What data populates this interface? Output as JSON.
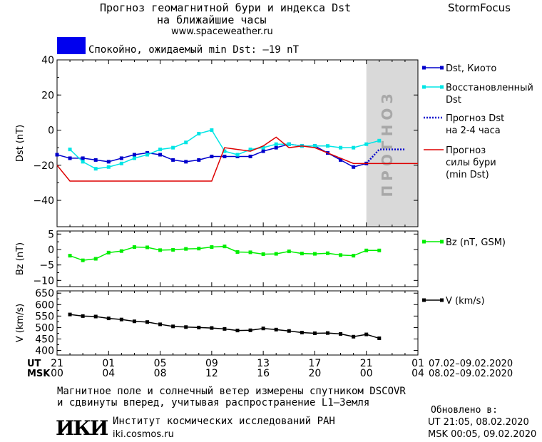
{
  "header": {
    "title_line1": "Прогноз геомагнитной бури и индекса Dst",
    "title_line2": "на ближайшие часы",
    "url": "www.spaceweather.ru",
    "brand": "StormFocus"
  },
  "status": {
    "text": "Спокойно, ожидаемый min Dst: –19 nT",
    "color": "#0000ee"
  },
  "colors": {
    "dst_kyoto": "#0000cc",
    "dst_restored": "#00e5e5",
    "dst_forecast": "#0000cc",
    "storm_forecast": "#dd0000",
    "bz": "#00ee00",
    "v": "#000000",
    "forecast_band": "#d9d9d9"
  },
  "forecast_band_label": "ПРОГНОЗ",
  "time_axis": {
    "row_ut_label": "UT",
    "row_msk_label": "MSK",
    "ut_ticks": [
      "21",
      "01",
      "05",
      "09",
      "13",
      "17",
      "21",
      "01"
    ],
    "msk_ticks": [
      "00",
      "04",
      "08",
      "12",
      "16",
      "20",
      "00",
      "04"
    ],
    "ut_dates": "07.02–09.02.2020",
    "msk_dates": "08.02–09.02.2020"
  },
  "chart_data": [
    {
      "type": "line",
      "ylabel": "Dst (nT)",
      "ylim": [
        -55,
        40
      ],
      "yticks": [
        40,
        20,
        0,
        -20,
        -40
      ],
      "xlim": [
        0,
        28
      ],
      "forecast_band": [
        24,
        28
      ],
      "legend": [
        "Dst, Киото",
        "Восстановленный Dst",
        "Прогноз Dst на 2-4 часа",
        "Прогноз силы бури (min Dst)"
      ],
      "series": [
        {
          "name": "Dst, Киото",
          "x": [
            0,
            1,
            2,
            3,
            4,
            5,
            6,
            7,
            8,
            9,
            10,
            11,
            12,
            13,
            14,
            15,
            16,
            17,
            18,
            19,
            20,
            21,
            22,
            23,
            24
          ],
          "values": [
            -14,
            -16,
            -16,
            -17,
            -18,
            -16,
            -14,
            -13,
            -14,
            -17,
            -18,
            -17,
            -15,
            -15,
            -15,
            -15,
            -12,
            -10,
            -8,
            -9,
            -9,
            -13,
            -17,
            -21,
            -19
          ]
        },
        {
          "name": "Восстановленный Dst",
          "x": [
            1,
            2,
            3,
            4,
            5,
            6,
            7,
            8,
            9,
            10,
            11,
            12,
            13,
            14,
            15,
            16,
            17,
            18,
            19,
            20,
            21,
            22,
            23,
            24,
            25
          ],
          "values": [
            -11,
            -18,
            -22,
            -21,
            -19,
            -16,
            -14,
            -11,
            -10,
            -7,
            -2,
            0,
            -12,
            -14,
            -11,
            -10,
            -8,
            -8,
            -9,
            -9,
            -9,
            -10,
            -10,
            -8,
            -6
          ]
        },
        {
          "name": "Прогноз Dst на 2-4 часа",
          "x": [
            24,
            25,
            26,
            27
          ],
          "values": [
            -19,
            -11,
            -11,
            -11
          ]
        },
        {
          "name": "Прогноз силы бури (min Dst)",
          "x": [
            0,
            1,
            12,
            13,
            14,
            15,
            16,
            17,
            18,
            19,
            20,
            21,
            22,
            23,
            24,
            28
          ],
          "values": [
            -20,
            -29,
            -29,
            -10,
            -11,
            -12,
            -9,
            -4,
            -10,
            -9,
            -10,
            -13,
            -16,
            -19,
            -19,
            -19
          ]
        }
      ]
    },
    {
      "type": "line",
      "ylabel": "Bz (nT)",
      "ylim": [
        -12,
        6
      ],
      "yticks": [
        5,
        0,
        -5,
        -10
      ],
      "xlim": [
        0,
        28
      ],
      "legend": [
        "Bz (nT, GSM)"
      ],
      "series": [
        {
          "name": "Bz (nT, GSM)",
          "x": [
            1,
            2,
            3,
            4,
            5,
            6,
            7,
            8,
            9,
            10,
            11,
            12,
            13,
            14,
            15,
            16,
            17,
            18,
            19,
            20,
            21,
            22,
            23,
            24,
            25
          ],
          "values": [
            -2,
            -3.5,
            -3,
            -1,
            -0.5,
            0.8,
            0.7,
            -0.2,
            -0.1,
            0.2,
            0.3,
            0.8,
            1,
            -0.8,
            -0.9,
            -1.5,
            -1.4,
            -0.6,
            -1.3,
            -1.4,
            -1.2,
            -1.8,
            -2,
            -0.3,
            -0.3
          ]
        }
      ]
    },
    {
      "type": "line",
      "ylabel": "V (km/s)",
      "ylim": [
        380,
        660
      ],
      "yticks": [
        650,
        600,
        550,
        500,
        450,
        400
      ],
      "xlim": [
        0,
        28
      ],
      "legend": [
        "V (km/s)"
      ],
      "series": [
        {
          "name": "V (km/s)",
          "x": [
            1,
            2,
            3,
            4,
            5,
            6,
            7,
            8,
            9,
            10,
            11,
            12,
            13,
            14,
            15,
            16,
            17,
            18,
            19,
            20,
            21,
            22,
            23,
            24,
            25
          ],
          "values": [
            557,
            550,
            548,
            540,
            535,
            527,
            524,
            514,
            505,
            502,
            500,
            498,
            494,
            487,
            488,
            496,
            491,
            485,
            478,
            475,
            476,
            472,
            460,
            470,
            453
          ]
        }
      ]
    }
  ],
  "footer": {
    "line1": "Магнитное поле и солнечный ветер измерены спутником DSCOVR",
    "line2": "и сдвинуты вперед, учитывая распространение L1–Земля",
    "logo_text": "ИКИ",
    "institute": "Институт космических исследований РАН",
    "institute_url": "iki.cosmos.ru",
    "updated_label": "Обновлено в:",
    "updated_ut": "UT   21:05, 08.02.2020",
    "updated_msk": "MSK 00:05, 09.02.2020"
  }
}
